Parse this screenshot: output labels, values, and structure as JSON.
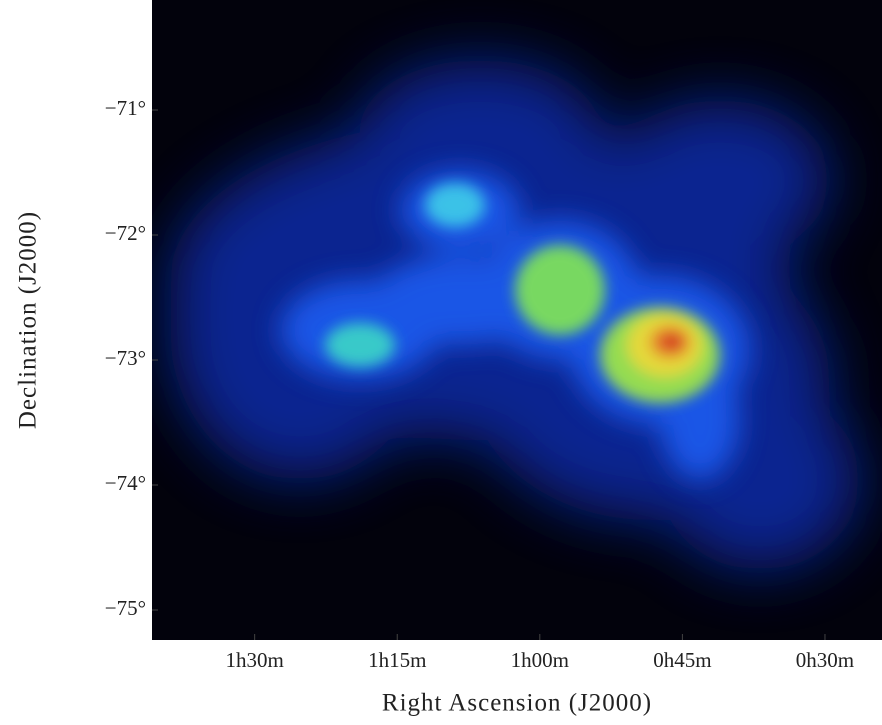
{
  "chart_data": {
    "type": "image",
    "x_label": "Right Ascension (J2000)",
    "y_label": "Declination (J2000)",
    "xlim": [
      100.8,
      24
    ],
    "xticks": [
      {
        "value": 90,
        "label": "1h30m"
      },
      {
        "value": 75,
        "label": "1h15m"
      },
      {
        "value": 60,
        "label": "1h00m"
      },
      {
        "value": 45,
        "label": "0h45m"
      },
      {
        "value": 30,
        "label": "0h30m"
      }
    ],
    "ylim": [
      -75.24,
      -70.12
    ],
    "yticks": [
      {
        "value": -71,
        "label": "−71°"
      },
      {
        "value": -72,
        "label": "−72°"
      },
      {
        "value": -73,
        "label": "−73°"
      },
      {
        "value": -74,
        "label": "−74°"
      },
      {
        "value": -75,
        "label": "−75°"
      }
    ]
  }
}
